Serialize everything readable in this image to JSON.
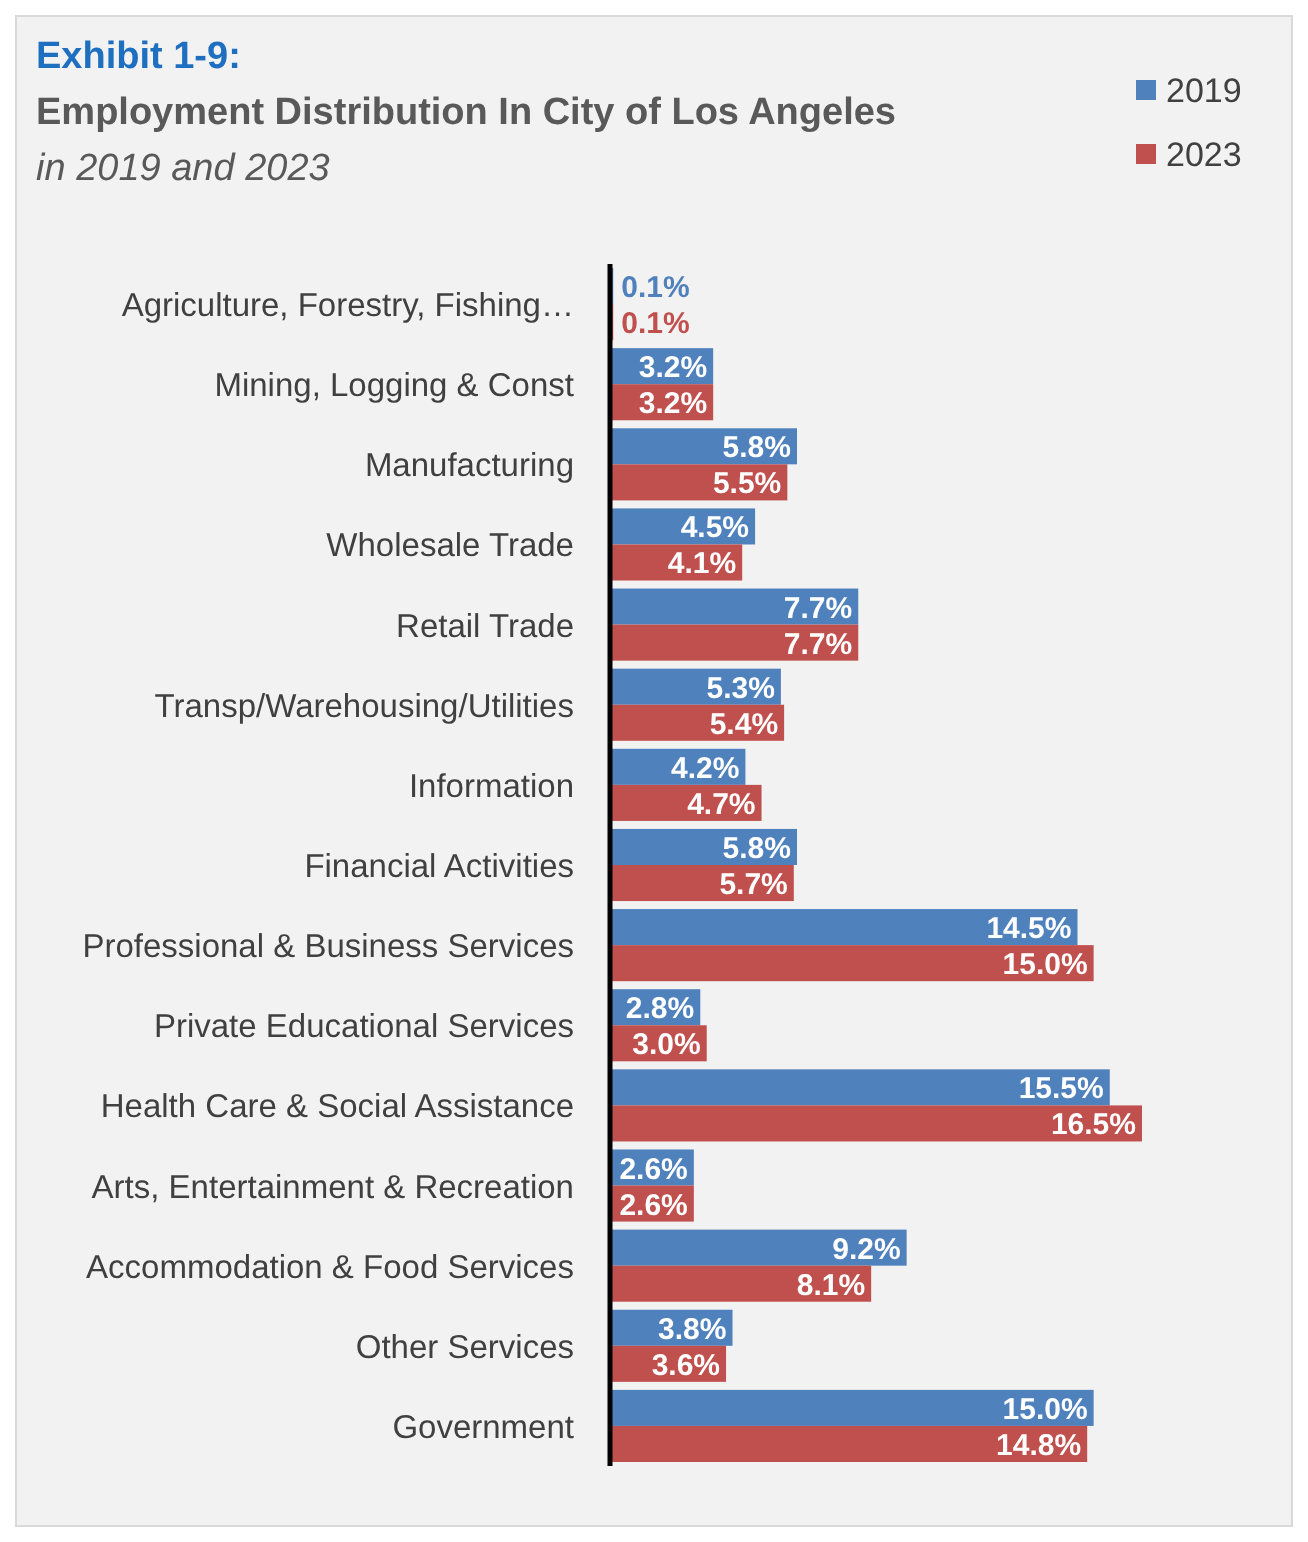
{
  "chart_data": {
    "type": "bar",
    "orientation": "horizontal",
    "title": "Exhibit 1-9:",
    "subtitle": "Employment Distribution In City of Los Angeles",
    "annotations": [
      "in 2019 and 2023"
    ],
    "categories": [
      "Agriculture, Forestry, Fishing…",
      "Mining, Logging & Const",
      "Manufacturing",
      "Wholesale Trade",
      "Retail Trade",
      "Transp/Warehousing/Utilities",
      "Information",
      "Financial Activities",
      "Professional & Business Services",
      "Private Educational Services",
      "Health Care & Social Assistance",
      "Arts, Entertainment & Recreation",
      "Accommodation & Food Services",
      "Other Services",
      "Government"
    ],
    "series": [
      {
        "name": "2019",
        "color": "#4f81bd",
        "values": [
          0.1,
          3.2,
          5.8,
          4.5,
          7.7,
          5.3,
          4.2,
          5.8,
          14.5,
          2.8,
          15.5,
          2.6,
          9.2,
          3.8,
          15.0
        ],
        "value_labels": [
          "0.1%",
          "3.2%",
          "5.8%",
          "4.5%",
          "7.7%",
          "5.3%",
          "4.2%",
          "5.8%",
          "14.5%",
          "2.8%",
          "15.5%",
          "2.6%",
          "9.2%",
          "3.8%",
          "15.0%"
        ]
      },
      {
        "name": "2023",
        "color": "#c0504d",
        "values": [
          0.1,
          3.2,
          5.5,
          4.1,
          7.7,
          5.4,
          4.7,
          5.7,
          15.0,
          3.0,
          16.5,
          2.6,
          8.1,
          3.6,
          14.8
        ],
        "value_labels": [
          "0.1%",
          "3.2%",
          "5.5%",
          "4.1%",
          "7.7%",
          "5.4%",
          "4.7%",
          "5.7%",
          "15.0%",
          "3.0%",
          "16.5%",
          "2.6%",
          "8.1%",
          "3.6%",
          "14.8%"
        ]
      }
    ],
    "tick_labels": "y",
    "legend": "top right"
  }
}
